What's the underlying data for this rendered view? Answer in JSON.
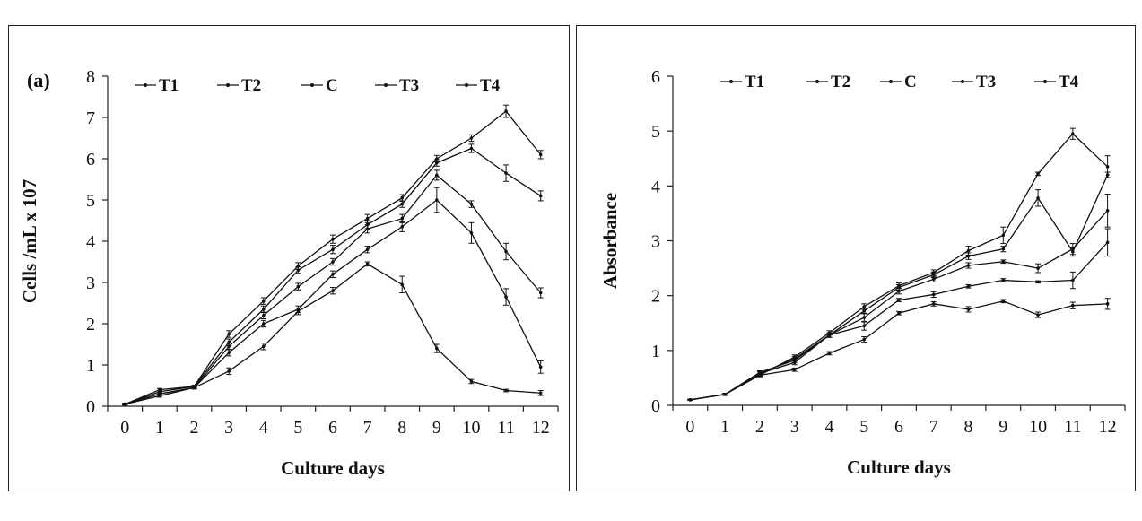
{
  "chart_data": [
    {
      "type": "line",
      "panel_label": "(a)",
      "xlabel": "Culture days",
      "ylabel": "Cells /mL x 107",
      "x": [
        0,
        1,
        2,
        3,
        4,
        5,
        6,
        7,
        8,
        9,
        10,
        11,
        12
      ],
      "xticks": [
        "0",
        "1",
        "2",
        "3",
        "4",
        "5",
        "6",
        "7",
        "8",
        "9",
        "10",
        "11",
        "12"
      ],
      "yticks": [
        "0",
        "1",
        "2",
        "3",
        "4",
        "5",
        "6",
        "7",
        "8"
      ],
      "ylim": [
        0,
        8
      ],
      "legend": "top, horizontal",
      "error_bars": true,
      "series": [
        {
          "name": "T1",
          "values": [
            0.05,
            0.4,
            0.48,
            1.75,
            2.55,
            3.4,
            4.05,
            4.55,
            5.05,
            6.0,
            6.5,
            7.15,
            6.1
          ],
          "err": [
            0.02,
            0.03,
            0.03,
            0.08,
            0.08,
            0.08,
            0.1,
            0.1,
            0.08,
            0.08,
            0.08,
            0.15,
            0.1
          ]
        },
        {
          "name": "T2",
          "values": [
            0.05,
            0.35,
            0.48,
            1.55,
            2.35,
            3.3,
            3.8,
            4.4,
            4.9,
            5.9,
            6.25,
            5.65,
            5.1
          ],
          "err": [
            0.02,
            0.03,
            0.03,
            0.08,
            0.08,
            0.08,
            0.1,
            0.1,
            0.08,
            0.08,
            0.1,
            0.2,
            0.12
          ]
        },
        {
          "name": "C",
          "values": [
            0.05,
            0.3,
            0.45,
            1.45,
            2.2,
            2.9,
            3.5,
            4.3,
            4.55,
            5.6,
            4.9,
            3.75,
            2.75
          ],
          "err": [
            0.02,
            0.03,
            0.03,
            0.08,
            0.08,
            0.08,
            0.08,
            0.1,
            0.1,
            0.12,
            0.08,
            0.2,
            0.12
          ]
        },
        {
          "name": "T3",
          "values": [
            0.05,
            0.25,
            0.45,
            1.3,
            2.0,
            2.35,
            3.2,
            3.8,
            4.35,
            5.0,
            4.2,
            2.65,
            0.95
          ],
          "err": [
            0.02,
            0.03,
            0.03,
            0.08,
            0.08,
            0.08,
            0.08,
            0.08,
            0.12,
            0.3,
            0.25,
            0.2,
            0.15
          ]
        },
        {
          "name": "T4",
          "values": [
            0.05,
            0.3,
            0.45,
            0.85,
            1.45,
            2.3,
            2.8,
            3.45,
            2.95,
            1.4,
            0.6,
            0.38,
            0.32
          ],
          "err": [
            0.02,
            0.03,
            0.03,
            0.08,
            0.08,
            0.08,
            0.08,
            0.05,
            0.2,
            0.1,
            0.05,
            0.03,
            0.06
          ]
        }
      ]
    },
    {
      "type": "line",
      "panel_label": "",
      "xlabel": "Culture days",
      "ylabel": "Absorbance",
      "x": [
        0,
        1,
        2,
        3,
        4,
        5,
        6,
        7,
        8,
        9,
        10,
        11,
        12
      ],
      "xticks": [
        "0",
        "1",
        "2",
        "3",
        "4",
        "5",
        "6",
        "7",
        "8",
        "9",
        "10",
        "11",
        "12"
      ],
      "yticks": [
        "0",
        "1",
        "2",
        "3",
        "4",
        "5",
        "6"
      ],
      "ylim": [
        0,
        6
      ],
      "legend": "top, horizontal",
      "error_bars": true,
      "series": [
        {
          "name": "T1",
          "values": [
            0.1,
            0.2,
            0.55,
            0.88,
            1.32,
            1.8,
            2.18,
            2.42,
            2.82,
            3.1,
            4.22,
            4.95,
            4.35
          ],
          "err": [
            0.01,
            0.02,
            0.03,
            0.04,
            0.04,
            0.05,
            0.05,
            0.05,
            0.08,
            0.15,
            0.03,
            0.1,
            0.2
          ]
        },
        {
          "name": "T2",
          "values": [
            0.1,
            0.2,
            0.58,
            0.85,
            1.28,
            1.72,
            2.15,
            2.38,
            2.72,
            2.85,
            3.78,
            2.8,
            4.2
          ],
          "err": [
            0.01,
            0.02,
            0.03,
            0.04,
            0.04,
            0.05,
            0.05,
            0.05,
            0.06,
            0.05,
            0.15,
            0.08,
            0.05
          ]
        },
        {
          "name": "C",
          "values": [
            0.1,
            0.2,
            0.6,
            0.82,
            1.28,
            1.6,
            2.08,
            2.3,
            2.55,
            2.62,
            2.5,
            2.85,
            3.55
          ],
          "err": [
            0.01,
            0.02,
            0.03,
            0.04,
            0.04,
            0.08,
            0.05,
            0.05,
            0.05,
            0.03,
            0.08,
            0.1,
            0.3
          ]
        },
        {
          "name": "T3",
          "values": [
            0.1,
            0.2,
            0.58,
            0.78,
            1.28,
            1.45,
            1.92,
            2.02,
            2.17,
            2.28,
            2.25,
            2.28,
            2.97
          ],
          "err": [
            0.01,
            0.02,
            0.03,
            0.04,
            0.04,
            0.08,
            0.03,
            0.05,
            0.03,
            0.03,
            0.02,
            0.15,
            0.25
          ]
        },
        {
          "name": "T4",
          "values": [
            0.1,
            0.2,
            0.55,
            0.65,
            0.95,
            1.2,
            1.68,
            1.85,
            1.75,
            1.9,
            1.65,
            1.82,
            1.85
          ],
          "err": [
            0.01,
            0.02,
            0.02,
            0.03,
            0.03,
            0.05,
            0.03,
            0.04,
            0.05,
            0.03,
            0.05,
            0.06,
            0.1
          ]
        }
      ]
    }
  ]
}
